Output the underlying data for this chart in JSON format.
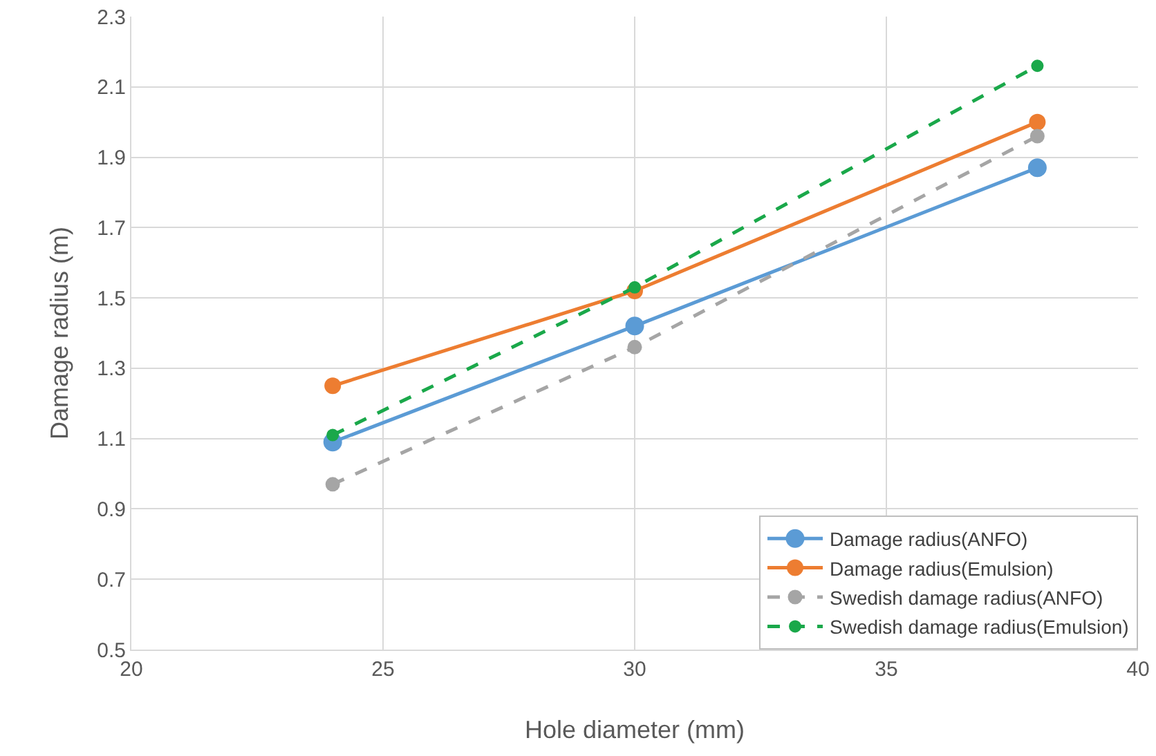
{
  "chart_data": {
    "type": "line",
    "xlabel": "Hole diameter (mm)",
    "ylabel": "Damage radius (m)",
    "x": [
      24,
      30,
      38
    ],
    "series": [
      {
        "name": "Damage radius(ANFO)",
        "color": "#5b9bd5",
        "values": [
          1.09,
          1.42,
          1.87
        ],
        "line_style": "solid"
      },
      {
        "name": "Damage radius(Emulsion)",
        "color": "#ed7d31",
        "values": [
          1.25,
          1.52,
          2.0
        ],
        "line_style": "solid"
      },
      {
        "name": "Swedish damage radius(ANFO)",
        "color": "#a5a5a5",
        "values": [
          0.97,
          1.36,
          1.96
        ],
        "line_style": "dashed"
      },
      {
        "name": "Swedish damage radius(Emulsion)",
        "color": "#1aa84a",
        "values": [
          1.11,
          1.53,
          2.16
        ],
        "line_style": "dashed"
      }
    ],
    "xlim": [
      20,
      40
    ],
    "xticks": [
      20,
      25,
      30,
      35,
      40
    ],
    "ylim": [
      0.5,
      2.3
    ],
    "yticks": [
      0.5,
      0.7,
      0.9,
      1.1,
      1.3,
      1.5,
      1.7,
      1.9,
      2.1,
      2.3
    ],
    "grid": true,
    "legend": "bottom right",
    "marker": "circle"
  }
}
